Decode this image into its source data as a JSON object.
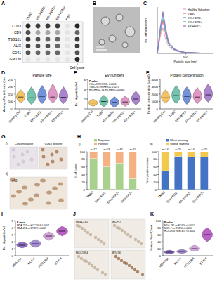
{
  "figure": {
    "panel_labels": [
      "A",
      "B",
      "C",
      "D",
      "E",
      "F",
      "G",
      "H",
      "I",
      "J",
      "K"
    ],
    "dot_blot": {
      "columns": [
        "TNBC",
        "ER+HER2-",
        "ER+HER2+",
        "ER-HER2+",
        "PBS"
      ],
      "rows": [
        "CD63",
        "CD9",
        "TSG101",
        "ALIX",
        "CD41",
        "GM130"
      ],
      "side_label": "Cell lysate",
      "intensity": [
        [
          0.9,
          0.8,
          0.8,
          0.8,
          0,
          0.9
        ],
        [
          0.7,
          0.3,
          0.3,
          0.3,
          0,
          0.6
        ],
        [
          0.8,
          0.7,
          0.6,
          0.6,
          0,
          0.8
        ],
        [
          0.8,
          0.7,
          0.7,
          0.6,
          0,
          0.8
        ],
        [
          0.7,
          0.6,
          0.6,
          0.6,
          0,
          0.7
        ],
        [
          0,
          0,
          0,
          0,
          0,
          0.9
        ]
      ]
    },
    "em_image": {
      "scale_bar": "200nm"
    },
    "ihc": {
      "labels": [
        "i)",
        "ii)"
      ],
      "images": [
        "CD63 negative",
        "CD63 positive"
      ],
      "magnification": "x40"
    },
    "cell_images": [
      "MDA-231",
      "MCF-7",
      "HCC1954",
      "BT474"
    ]
  },
  "chart_data": [
    {
      "type": "line",
      "x_label": "Particle size (nm)",
      "y_label": "No. of Particles/ml",
      "x": [
        0,
        50,
        100,
        150,
        200,
        300,
        400,
        500,
        700,
        1000
      ],
      "xlim": [
        0,
        1000
      ],
      "xticks": [
        500
      ],
      "ylim": [
        0,
        10
      ],
      "yticks": [],
      "tick_labels": "x",
      "legend": "upper right",
      "series": [
        {
          "name": "Healthy Volunteer",
          "color": "#e8a0c8",
          "values": [
            0,
            3.5,
            5.5,
            3,
            1.5,
            0.6,
            0.3,
            0.2,
            0.1,
            0
          ]
        },
        {
          "name": "TNBC",
          "color": "#e06c6c",
          "values": [
            0,
            4,
            7,
            4,
            2,
            0.8,
            0.4,
            0.2,
            0.1,
            0
          ]
        },
        {
          "name": "ER+HER2-",
          "color": "#5b7fd0",
          "values": [
            0,
            5,
            8.5,
            5,
            2.2,
            0.9,
            0.4,
            0.2,
            0.1,
            0
          ]
        },
        {
          "name": "ER+HER2+",
          "color": "#4fb3a9",
          "values": [
            0,
            4.5,
            7.5,
            4.5,
            2,
            0.8,
            0.4,
            0.2,
            0.1,
            0
          ]
        },
        {
          "name": "ER-HER2+",
          "color": "#9b6fc4",
          "values": [
            0,
            5.5,
            9,
            5.5,
            2.5,
            1,
            0.5,
            0.2,
            0.1,
            0
          ]
        }
      ]
    },
    {
      "type": "violin",
      "title": "Particle size",
      "y_label": "Average Particle size (nm)",
      "categories": [
        "Healthy Ctrl",
        "TNBC",
        "ER+HER2-",
        "ER+HER2+",
        "ER-HER2+"
      ],
      "colors": [
        "#f2b84b",
        "#5cb89f",
        "#5b7fd0",
        "#d986b8",
        "#9b6fc4"
      ],
      "values": [
        130,
        125,
        135,
        130,
        128
      ],
      "ranges": [
        [
          90,
          180
        ],
        [
          80,
          200
        ],
        [
          85,
          210
        ],
        [
          90,
          220
        ],
        [
          85,
          200
        ]
      ],
      "ylim": [
        50,
        250
      ],
      "yticks": [
        50,
        100,
        150,
        200,
        250
      ]
    },
    {
      "type": "violin",
      "title": "EV numbers",
      "y_label": "No. of particles/ml",
      "categories": [
        "Healthy Ctrl",
        "TNBC",
        "ER+HER2-",
        "ER+HER2+",
        "ER-HER2+"
      ],
      "colors": [
        "#f2b84b",
        "#5cb89f",
        "#5b7fd0",
        "#d986b8",
        "#9b6fc4"
      ],
      "values": [
        1.2,
        1.5,
        1.3,
        1.4,
        2.0
      ],
      "ranges": [
        [
          0.5,
          2.0
        ],
        [
          0.4,
          2.8
        ],
        [
          0.3,
          2.5
        ],
        [
          0.5,
          2.6
        ],
        [
          0.8,
          3.6
        ]
      ],
      "ylim": [
        0,
        6
      ],
      "yticks": [
        0,
        2,
        4,
        6
      ],
      "annotations": [
        "P value",
        "HC vs ER-HER2+ 0.0003",
        "TNBC vs ER-HER2+ 0.0271",
        "ER+HER2- vs ER-HER2+ 0.0046"
      ]
    },
    {
      "type": "violin",
      "title": "Protein concentration",
      "y_label": "Protein concentration (µg/ml)",
      "categories": [
        "Healthy Ctrl",
        "TNBC",
        "ER+HER2-",
        "ER+HER2+",
        "ER-HER2+"
      ],
      "colors": [
        "#f2b84b",
        "#5cb89f",
        "#5b7fd0",
        "#d986b8",
        "#9b6fc4"
      ],
      "values": [
        1500,
        1800,
        1700,
        1600,
        1900
      ],
      "ranges": [
        [
          800,
          2600
        ],
        [
          700,
          3200
        ],
        [
          600,
          3000
        ],
        [
          700,
          2900
        ],
        [
          900,
          3400
        ]
      ],
      "ylim": [
        0,
        4000
      ],
      "yticks": [
        0,
        1000,
        2000,
        3000,
        4000
      ]
    },
    {
      "type": "bar",
      "stacked": true,
      "subtitle": "i)",
      "y_label": "% of cases",
      "legend": "top",
      "categories": [
        "TNBC",
        "ER+HER2-",
        "ER+HER2+",
        "ER-HER2+"
      ],
      "series": [
        {
          "name": "Negative",
          "color": "#a9d18e",
          "values": [
            82,
            60,
            70,
            29
          ]
        },
        {
          "name": "Positive",
          "color": "#f4b183",
          "values": [
            18,
            40,
            30,
            71
          ]
        }
      ],
      "ylim": [
        0,
        100
      ],
      "yticks": [
        0,
        20,
        40,
        60,
        80,
        100
      ],
      "annotations": [
        "n=77",
        "n=63",
        "n=47",
        "n=31"
      ]
    },
    {
      "type": "bar",
      "stacked": true,
      "subtitle": "ii)",
      "y_label": "% of positive cases",
      "legend": "top",
      "categories": [
        "TNBC",
        "ER+HER2-",
        "ER+HER2+",
        "ER-HER2+"
      ],
      "series": [
        {
          "name": "Weak staining",
          "color": "#4472c4",
          "values": [
            50,
            88,
            86,
            86
          ]
        },
        {
          "name": "Strong staining",
          "color": "#f2c94c",
          "values": [
            50,
            12,
            14,
            14
          ]
        }
      ],
      "ylim": [
        0,
        100
      ],
      "yticks": [
        0,
        20,
        40,
        60,
        80,
        100
      ],
      "annotations": [
        "n=14",
        "n=25",
        "n=14",
        "n=22"
      ]
    },
    {
      "type": "violin",
      "y_label": "No. of particles/ml",
      "categories": [
        "MDA-231",
        "MCF-7",
        "HCC1954",
        "BT474"
      ],
      "colors": [
        "#7e57c2",
        "#9575cd",
        "#ce93d8",
        "#ab47bc"
      ],
      "values": [
        1.5,
        1.7,
        2.8,
        3.5
      ],
      "ranges": [
        [
          1.1,
          2.0
        ],
        [
          1.2,
          2.3
        ],
        [
          2.2,
          3.4
        ],
        [
          2.8,
          4.2
        ]
      ],
      "ylim": [
        0,
        5
      ],
      "yticks": [
        0,
        1,
        2,
        3,
        4,
        5
      ],
      "annotations": [
        "P value",
        "MDA-231 vs HCC1954 0.0007",
        "MDA-231 vs BT474 0.0002"
      ]
    },
    {
      "type": "violin",
      "y_label": "Positive Pixel Count",
      "categories": [
        "MDA-231",
        "MCF-7",
        "HCC1954",
        "BT474"
      ],
      "colors": [
        "#7e57c2",
        "#9575cd",
        "#ce93d8",
        "#ab47bc"
      ],
      "values": [
        10,
        12,
        20,
        60
      ],
      "ranges": [
        [
          5,
          16
        ],
        [
          6,
          18
        ],
        [
          12,
          30
        ],
        [
          40,
          80
        ]
      ],
      "ylim": [
        0,
        100
      ],
      "yticks": [
        0,
        20,
        40,
        60,
        80,
        100
      ],
      "annotations": [
        "P value",
        "MDA-231 vs BT474 <0.0001",
        "MCF-7 vs BT474 <0.0001",
        "HCC1954 vs BT474 <0.0001"
      ]
    }
  ]
}
